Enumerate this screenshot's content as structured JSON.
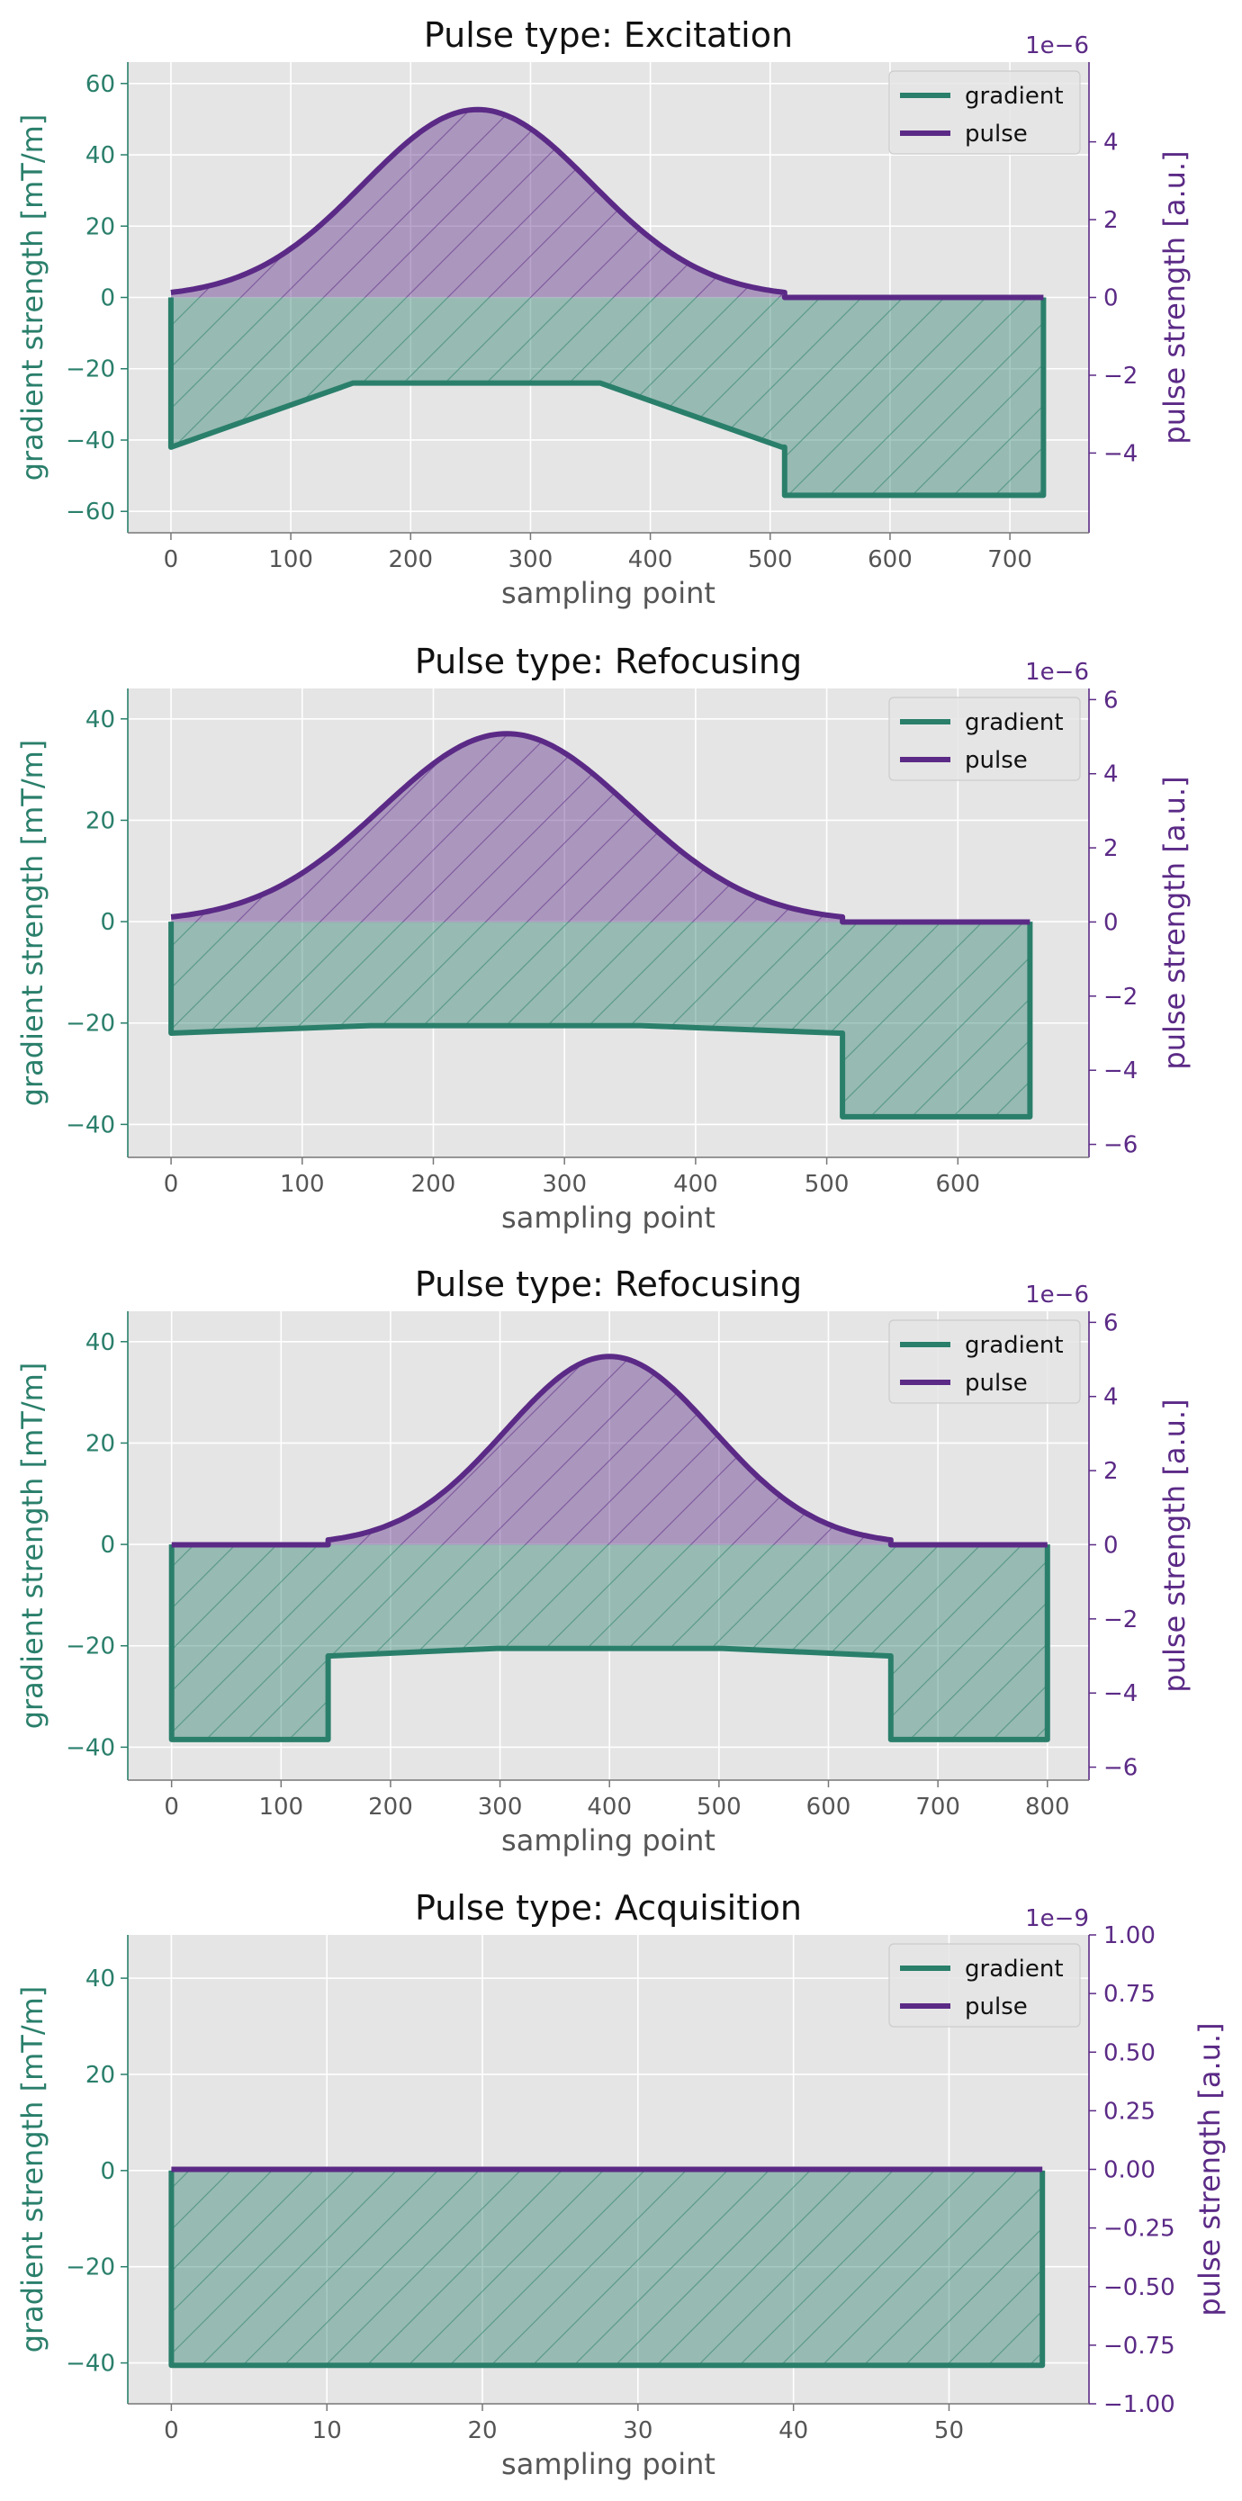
{
  "colors": {
    "gradient": "#2a7f6b",
    "pulse": "#5b2a86",
    "panel_bg": "#e5e5e5",
    "grid": "#ffffff",
    "text": "#555555",
    "title": "#111111"
  },
  "chart_data": [
    {
      "type": "line",
      "title": "Pulse type: Excitation",
      "xlabel": "sampling point",
      "ylabel": "gradient strength [mT/m]",
      "ylabel_right": "pulse strength [a.u.]",
      "right_scale_label": "1e−6",
      "legend": [
        "gradient",
        "pulse"
      ],
      "legend_position": "top-right",
      "grid": true,
      "xlim": [
        -36,
        766
      ],
      "ylim": [
        -66,
        66
      ],
      "y2lim": [
        -6.05,
        6.05
      ],
      "xticks": [
        0,
        100,
        200,
        300,
        400,
        500,
        600,
        700
      ],
      "xtick_labels": [
        "0",
        "100",
        "200",
        "300",
        "400",
        "500",
        "600",
        "700"
      ],
      "yticks": [
        -60,
        -40,
        -20,
        0,
        20,
        40,
        60
      ],
      "ytick_labels": [
        "−60",
        "−40",
        "−20",
        "0",
        "20",
        "40",
        "60"
      ],
      "y2ticks": [
        -4,
        -2,
        0,
        2,
        4
      ],
      "y2tick_labels": [
        "−4",
        "−2",
        "0",
        "2",
        "4"
      ],
      "series": [
        {
          "name": "gradient",
          "axis": "left",
          "x": [
            0,
            0,
            152,
            358,
            510,
            512,
            512,
            728,
            728
          ],
          "y": [
            0,
            -42,
            -24,
            -24,
            -42,
            -42,
            -55.5,
            -55.5,
            0
          ]
        },
        {
          "name": "pulse",
          "axis": "right",
          "gaussian": {
            "start": 0,
            "end": 512,
            "center": 256,
            "sigma": 95,
            "peak": 4.83
          },
          "after": [
            [
              512,
              0
            ],
            [
              728,
              0
            ]
          ]
        }
      ]
    },
    {
      "type": "line",
      "title": "Pulse type: Refocusing",
      "xlabel": "sampling point",
      "ylabel": "gradient strength [mT/m]",
      "ylabel_right": "pulse strength [a.u.]",
      "right_scale_label": "1e−6",
      "legend": [
        "gradient",
        "pulse"
      ],
      "legend_position": "top-right",
      "grid": true,
      "xlim": [
        -33,
        700
      ],
      "ylim": [
        -46.5,
        46
      ],
      "y2lim": [
        -6.35,
        6.3
      ],
      "xticks": [
        0,
        100,
        200,
        300,
        400,
        500,
        600
      ],
      "xtick_labels": [
        "0",
        "100",
        "200",
        "300",
        "400",
        "500",
        "600"
      ],
      "yticks": [
        -40,
        -20,
        0,
        20,
        40
      ],
      "ytick_labels": [
        "−40",
        "−20",
        "0",
        "20",
        "40"
      ],
      "y2ticks": [
        -6,
        -4,
        -2,
        0,
        2,
        4,
        6
      ],
      "y2tick_labels": [
        "−6",
        "−4",
        "−2",
        "0",
        "2",
        "4",
        "6"
      ],
      "series": [
        {
          "name": "gradient",
          "axis": "left",
          "x": [
            0,
            0,
            152,
            358,
            510,
            512,
            512,
            655,
            655
          ],
          "y": [
            0,
            -22,
            -20.5,
            -20.5,
            -22,
            -22,
            -38.5,
            -38.5,
            0
          ]
        },
        {
          "name": "pulse",
          "axis": "right",
          "gaussian": {
            "start": 0,
            "end": 512,
            "center": 256,
            "sigma": 95,
            "peak": 5.08
          },
          "after": [
            [
              512,
              0
            ],
            [
              655,
              0
            ]
          ]
        }
      ]
    },
    {
      "type": "line",
      "title": "Pulse type: Refocusing",
      "xlabel": "sampling point",
      "ylabel": "gradient strength [mT/m]",
      "ylabel_right": "pulse strength [a.u.]",
      "right_scale_label": "1e−6",
      "legend": [
        "gradient",
        "pulse"
      ],
      "legend_position": "top-right",
      "grid": true,
      "xlim": [
        -40,
        838
      ],
      "ylim": [
        -46.5,
        46
      ],
      "y2lim": [
        -6.35,
        6.3
      ],
      "xticks": [
        0,
        100,
        200,
        300,
        400,
        500,
        600,
        700,
        800
      ],
      "xtick_labels": [
        "0",
        "100",
        "200",
        "300",
        "400",
        "500",
        "600",
        "700",
        "800"
      ],
      "yticks": [
        -40,
        -20,
        0,
        20,
        40
      ],
      "ytick_labels": [
        "−40",
        "−20",
        "0",
        "20",
        "40"
      ],
      "y2ticks": [
        -6,
        -4,
        -2,
        0,
        2,
        4,
        6
      ],
      "y2tick_labels": [
        "−6",
        "−4",
        "−2",
        "0",
        "2",
        "4",
        "6"
      ],
      "series": [
        {
          "name": "gradient",
          "axis": "left",
          "x": [
            0,
            0,
            143,
            143,
            145,
            297,
            503,
            655,
            657,
            657,
            800,
            800
          ],
          "y": [
            0,
            -38.5,
            -38.5,
            -22,
            -22,
            -20.5,
            -20.5,
            -22,
            -22,
            -38.5,
            -38.5,
            0
          ]
        },
        {
          "name": "pulse",
          "axis": "right",
          "before": [
            [
              0,
              0
            ],
            [
              143,
              0
            ]
          ],
          "gaussian": {
            "start": 143,
            "end": 657,
            "center": 400,
            "sigma": 95,
            "peak": 5.08
          },
          "after": [
            [
              657,
              0
            ],
            [
              800,
              0
            ]
          ]
        }
      ]
    },
    {
      "type": "line",
      "title": "Pulse type: Acquisition",
      "xlabel": "sampling point",
      "ylabel": "gradient strength [mT/m]",
      "ylabel_right": "pulse strength [a.u.]",
      "right_scale_label": "1e−9",
      "legend": [
        "gradient",
        "pulse"
      ],
      "legend_position": "top-right",
      "grid": true,
      "xlim": [
        -2.8,
        59
      ],
      "ylim": [
        -48.5,
        49
      ],
      "y2lim": [
        -1,
        1
      ],
      "xticks": [
        0,
        10,
        20,
        30,
        40,
        50
      ],
      "xtick_labels": [
        "0",
        "10",
        "20",
        "30",
        "40",
        "50"
      ],
      "yticks": [
        -40,
        -20,
        0,
        20,
        40
      ],
      "ytick_labels": [
        "−40",
        "−20",
        "0",
        "20",
        "40"
      ],
      "y2ticks": [
        -1,
        -0.75,
        -0.5,
        -0.25,
        0,
        0.25,
        0.5,
        0.75,
        1
      ],
      "y2tick_labels": [
        "−1.00",
        "−0.75",
        "−0.50",
        "−0.25",
        "0.00",
        "0.25",
        "0.50",
        "0.75",
        "1.00"
      ],
      "series": [
        {
          "name": "gradient",
          "axis": "left",
          "x": [
            0,
            0,
            56,
            56
          ],
          "y": [
            0,
            -40.5,
            -40.5,
            0
          ]
        },
        {
          "name": "pulse",
          "axis": "right",
          "after": [
            [
              0,
              0
            ],
            [
              56,
              0
            ]
          ]
        }
      ]
    }
  ]
}
